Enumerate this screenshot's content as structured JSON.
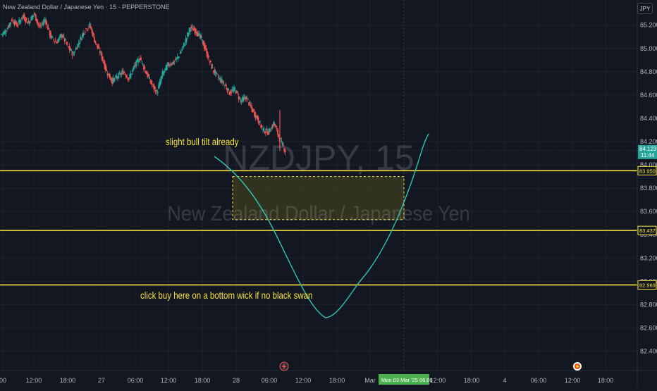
{
  "header": {
    "symbol_description": "New Zealand Dollar / Japanese Yen · 15 · PEPPERSTONE",
    "currency": "JPY"
  },
  "watermark": {
    "symbol": "NZDJPY, 15",
    "description": "New Zealand Dollar / Japanese Yen"
  },
  "annotations": {
    "note_top": "slight bull tilt already",
    "note_bottom": "click buy here on a bottom wick if no black swan"
  },
  "price_badge": {
    "price": "84.123",
    "countdown": "11:44"
  },
  "colors": {
    "background": "#131722",
    "up": "#26a69a",
    "down": "#ef5350",
    "level_line": "#f5e13c",
    "projection": "#2ec4b6",
    "zone_fill": "#4d4a1e",
    "crosshair": "#2962ff",
    "date_highlight": "#4caf50"
  },
  "icons": {
    "event_left": "lightning-icon",
    "event_right": "dividend-icon"
  },
  "chart_data": {
    "type": "candlestick",
    "timeframe": "15",
    "ylim": [
      82.27,
      85.38
    ],
    "yticks": [
      "85.200",
      "85.000",
      "84.800",
      "84.600",
      "84.400",
      "84.200",
      "84.000",
      "83.800",
      "83.600",
      "83.400",
      "83.200",
      "83.000",
      "82.800",
      "82.600",
      "82.400"
    ],
    "xticks": [
      "00",
      "12:00",
      "18:00",
      "27",
      "06:00",
      "12:00",
      "18:00",
      "28",
      "06:00",
      "12:00",
      "18:00",
      "Mar",
      "12:00",
      "18:00",
      "4",
      "06:00",
      "12:00",
      "18:00"
    ],
    "horizontal_levels": [
      {
        "price": 83.95,
        "label": "83.950"
      },
      {
        "price": 83.437,
        "label": "83.437"
      },
      {
        "price": 82.969,
        "label": "82.969"
      }
    ],
    "zone": {
      "from_price": 83.9,
      "to_price": 83.53,
      "from_date": "28 04:30",
      "to_date": "Mon 03 Mar '25 06:00"
    },
    "crosshair_date": "Mon 03 Mar '25",
    "crosshair_time": "06:00",
    "last_price": 84.123,
    "price_path_close": [
      85.15,
      85.25,
      85.2,
      85.28,
      85.22,
      85.3,
      85.18,
      85.25,
      85.1,
      85.05,
      85.12,
      85.02,
      84.95,
      85.05,
      85.15,
      85.2,
      85.05,
      84.95,
      84.8,
      84.72,
      84.76,
      84.8,
      84.74,
      84.85,
      84.92,
      84.8,
      84.7,
      84.62,
      84.78,
      84.86,
      84.88,
      84.94,
      85.05,
      85.18,
      85.15,
      85.08,
      84.95,
      84.82,
      84.75,
      84.7,
      84.62,
      84.65,
      84.55,
      84.58,
      84.48,
      84.4,
      84.3,
      84.28,
      84.36,
      84.22,
      84.12
    ],
    "projection_path": [
      {
        "date": "28 00:00",
        "price": 84.18
      },
      {
        "date": "28 06:00",
        "price": 83.78
      },
      {
        "date": "28 12:00",
        "price": 83.15
      },
      {
        "date": "28 15:00",
        "price": 82.69
      },
      {
        "date": "28 21:00",
        "price": 82.98
      },
      {
        "date": "Mar 06:00",
        "price": 83.55
      },
      {
        "date": "Mar 09:00",
        "price": 84.29
      }
    ]
  }
}
